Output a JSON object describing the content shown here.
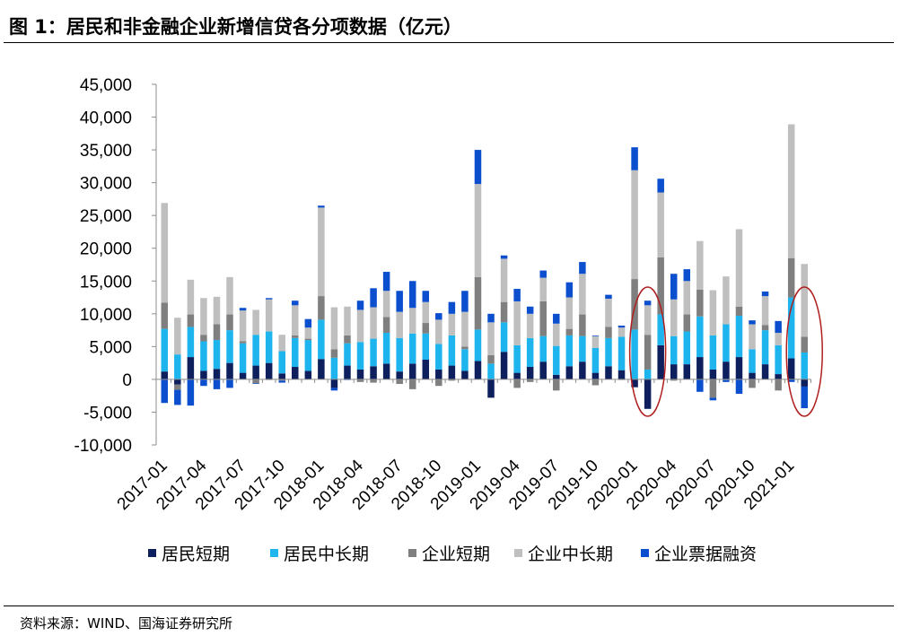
{
  "title": "图 1：居民和非金融企业新增信贷各分项数据（亿元）",
  "source": "资料来源：WIND、国海证券研究所",
  "colors": {
    "household_short": "#0d1f5c",
    "household_long": "#1eb4ee",
    "corporate_short": "#7f7f7f",
    "corporate_long": "#bfbfbf",
    "bills": "#0b4fcf",
    "ellipse": "#b01e1e"
  },
  "chart_data": {
    "type": "bar",
    "stacked": true,
    "title": "居民和非金融企业新增信贷各分项数据（亿元）",
    "ylabel": "",
    "xlabel": "",
    "ylim": [
      -10000,
      45000
    ],
    "yticks": [
      "45,000",
      "40,000",
      "35,000",
      "30,000",
      "25,000",
      "20,000",
      "15,000",
      "10,000",
      "5,000",
      "0",
      "-5,000",
      "-10,000"
    ],
    "xtick_labels": [
      "2017-01",
      "2017-04",
      "2017-07",
      "2017-10",
      "2018-01",
      "2018-04",
      "2018-07",
      "2018-10",
      "2019-01",
      "2019-04",
      "2019-07",
      "2019-10",
      "2020-01",
      "2020-04",
      "2020-07",
      "2020-10",
      "2021-01"
    ],
    "legend_position": "bottom",
    "categories": [
      "2017-01",
      "2017-02",
      "2017-03",
      "2017-04",
      "2017-05",
      "2017-06",
      "2017-07",
      "2017-08",
      "2017-09",
      "2017-10",
      "2017-11",
      "2017-12",
      "2018-01",
      "2018-02",
      "2018-03",
      "2018-04",
      "2018-05",
      "2018-06",
      "2018-07",
      "2018-08",
      "2018-09",
      "2018-10",
      "2018-11",
      "2018-12",
      "2019-01",
      "2019-02",
      "2019-03",
      "2019-04",
      "2019-05",
      "2019-06",
      "2019-07",
      "2019-08",
      "2019-09",
      "2019-10",
      "2019-11",
      "2019-12",
      "2020-01",
      "2020-02",
      "2020-03",
      "2020-04",
      "2020-05",
      "2020-06",
      "2020-07",
      "2020-08",
      "2020-09",
      "2020-10",
      "2020-11",
      "2020-12",
      "2021-01",
      "2021-02"
    ],
    "series": [
      {
        "name": "居民短期",
        "values": [
          1200,
          -800,
          3400,
          1300,
          1600,
          2500,
          1000,
          2100,
          2500,
          900,
          1900,
          1300,
          3100,
          -1300,
          2100,
          1500,
          2000,
          2400,
          1200,
          2400,
          3000,
          1500,
          2100,
          1300,
          2800,
          -2800,
          4200,
          1000,
          1900,
          2700,
          700,
          2000,
          2700,
          1000,
          2000,
          1400,
          -1200,
          -4500,
          5200,
          2300,
          2300,
          3400,
          1500,
          2700,
          3400,
          1000,
          2300,
          800,
          3200,
          -1100
        ]
      },
      {
        "name": "居民中长期",
        "values": [
          6500,
          3800,
          4600,
          4500,
          4400,
          5000,
          4500,
          4700,
          4800,
          3400,
          4400,
          4700,
          6000,
          3300,
          3400,
          4200,
          4200,
          4700,
          5100,
          4600,
          4000,
          3900,
          4600,
          3300,
          4800,
          2400,
          4500,
          4200,
          4400,
          3900,
          4400,
          4700,
          3900,
          3800,
          4300,
          5100,
          7600,
          1500,
          4700,
          4300,
          5000,
          6200,
          5200,
          5700,
          6300,
          3600,
          5200,
          4400,
          9300,
          4100
        ]
      },
      {
        "name": "企业短期",
        "values": [
          4000,
          -800,
          1900,
          1000,
          2400,
          2400,
          300,
          -600,
          -100,
          -200,
          400,
          200,
          3600,
          1300,
          1200,
          -400,
          -500,
          2400,
          -700,
          -1500,
          1600,
          -1000,
          -200,
          400,
          8000,
          1300,
          3100,
          -1300,
          -400,
          5300,
          -1700,
          1000,
          3300,
          -900,
          1700,
          -100,
          7700,
          5300,
          8700,
          -200,
          2600,
          4100,
          -2800,
          -100,
          1400,
          -1300,
          800,
          -1700,
          6000,
          2400
        ]
      },
      {
        "name": "企业中长期",
        "values": [
          15200,
          5600,
          5300,
          5600,
          4200,
          5700,
          4700,
          3800,
          4900,
          2500,
          4600,
          1700,
          13500,
          6400,
          4400,
          4900,
          4800,
          4000,
          4000,
          3900,
          3200,
          3700,
          3300,
          5300,
          14200,
          5000,
          6600,
          6700,
          3700,
          3600,
          3400,
          4800,
          6200,
          1800,
          4300,
          1400,
          16600,
          4500,
          9900,
          5600,
          5100,
          7400,
          6900,
          7300,
          11800,
          3800,
          4400,
          1900,
          20400,
          11100
        ]
      },
      {
        "name": "企业票据融资",
        "values": [
          -3600,
          -2300,
          -4000,
          -1000,
          -1500,
          -1300,
          400,
          -100,
          200,
          -300,
          700,
          1300,
          300,
          -400,
          -100,
          1400,
          2900,
          2900,
          3200,
          4100,
          1700,
          1000,
          1800,
          3200,
          5200,
          1300,
          500,
          1900,
          1100,
          1100,
          1500,
          2300,
          1800,
          100,
          600,
          300,
          3500,
          700,
          2100,
          3900,
          1800,
          -1900,
          -400,
          -300,
          -2200,
          600,
          700,
          1800,
          -400,
          -3300
        ]
      }
    ],
    "annotations": [
      "ellipse around 2020-02",
      "ellipse around 2021-02"
    ]
  },
  "legend": [
    {
      "label": "居民短期",
      "color": "#0d1f5c"
    },
    {
      "label": "居民中长期",
      "color": "#1eb4ee"
    },
    {
      "label": "企业短期",
      "color": "#7f7f7f"
    },
    {
      "label": "企业中长期",
      "color": "#bfbfbf"
    },
    {
      "label": "企业票据融资",
      "color": "#0b4fcf"
    }
  ]
}
